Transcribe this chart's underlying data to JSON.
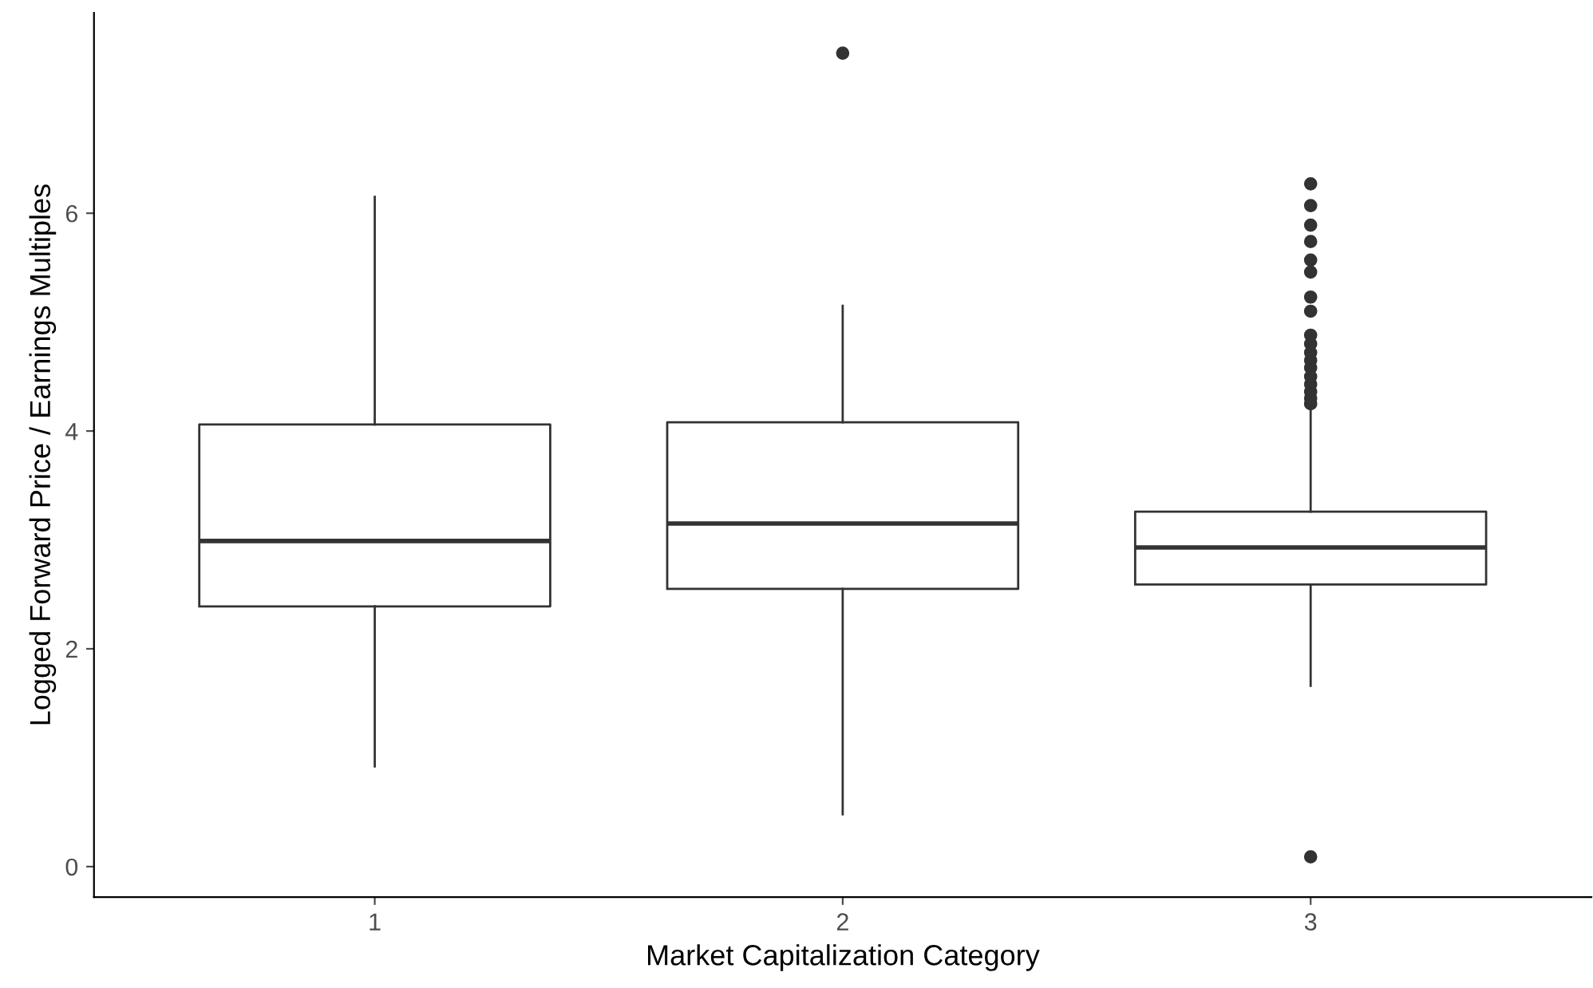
{
  "chart_data": {
    "type": "box",
    "xlabel": "Market Capitalization Category",
    "ylabel": "Logged Forward Price / Earnings Multiples",
    "categories": [
      "1",
      "2",
      "3"
    ],
    "boxes": [
      {
        "low": 0.92,
        "q1": 2.39,
        "median": 2.99,
        "q3": 4.06,
        "high": 6.15
      },
      {
        "low": 0.48,
        "q1": 2.55,
        "median": 3.15,
        "q3": 4.08,
        "high": 5.15,
        "outliers": [
          7.47
        ]
      },
      {
        "low": 1.66,
        "q1": 2.59,
        "median": 2.93,
        "q3": 3.26,
        "high": 4.21,
        "outliers": [
          0.09,
          4.25,
          4.3,
          4.36,
          4.43,
          4.5,
          4.58,
          4.65,
          4.72,
          4.8,
          4.88,
          5.1,
          5.23,
          5.46,
          5.57,
          5.74,
          5.89,
          6.07,
          6.27
        ]
      }
    ],
    "color": "#333333",
    "ylim": [
      -0.28,
      7.84
    ],
    "yticks": [
      0,
      2,
      4,
      6
    ],
    "grid": false
  }
}
